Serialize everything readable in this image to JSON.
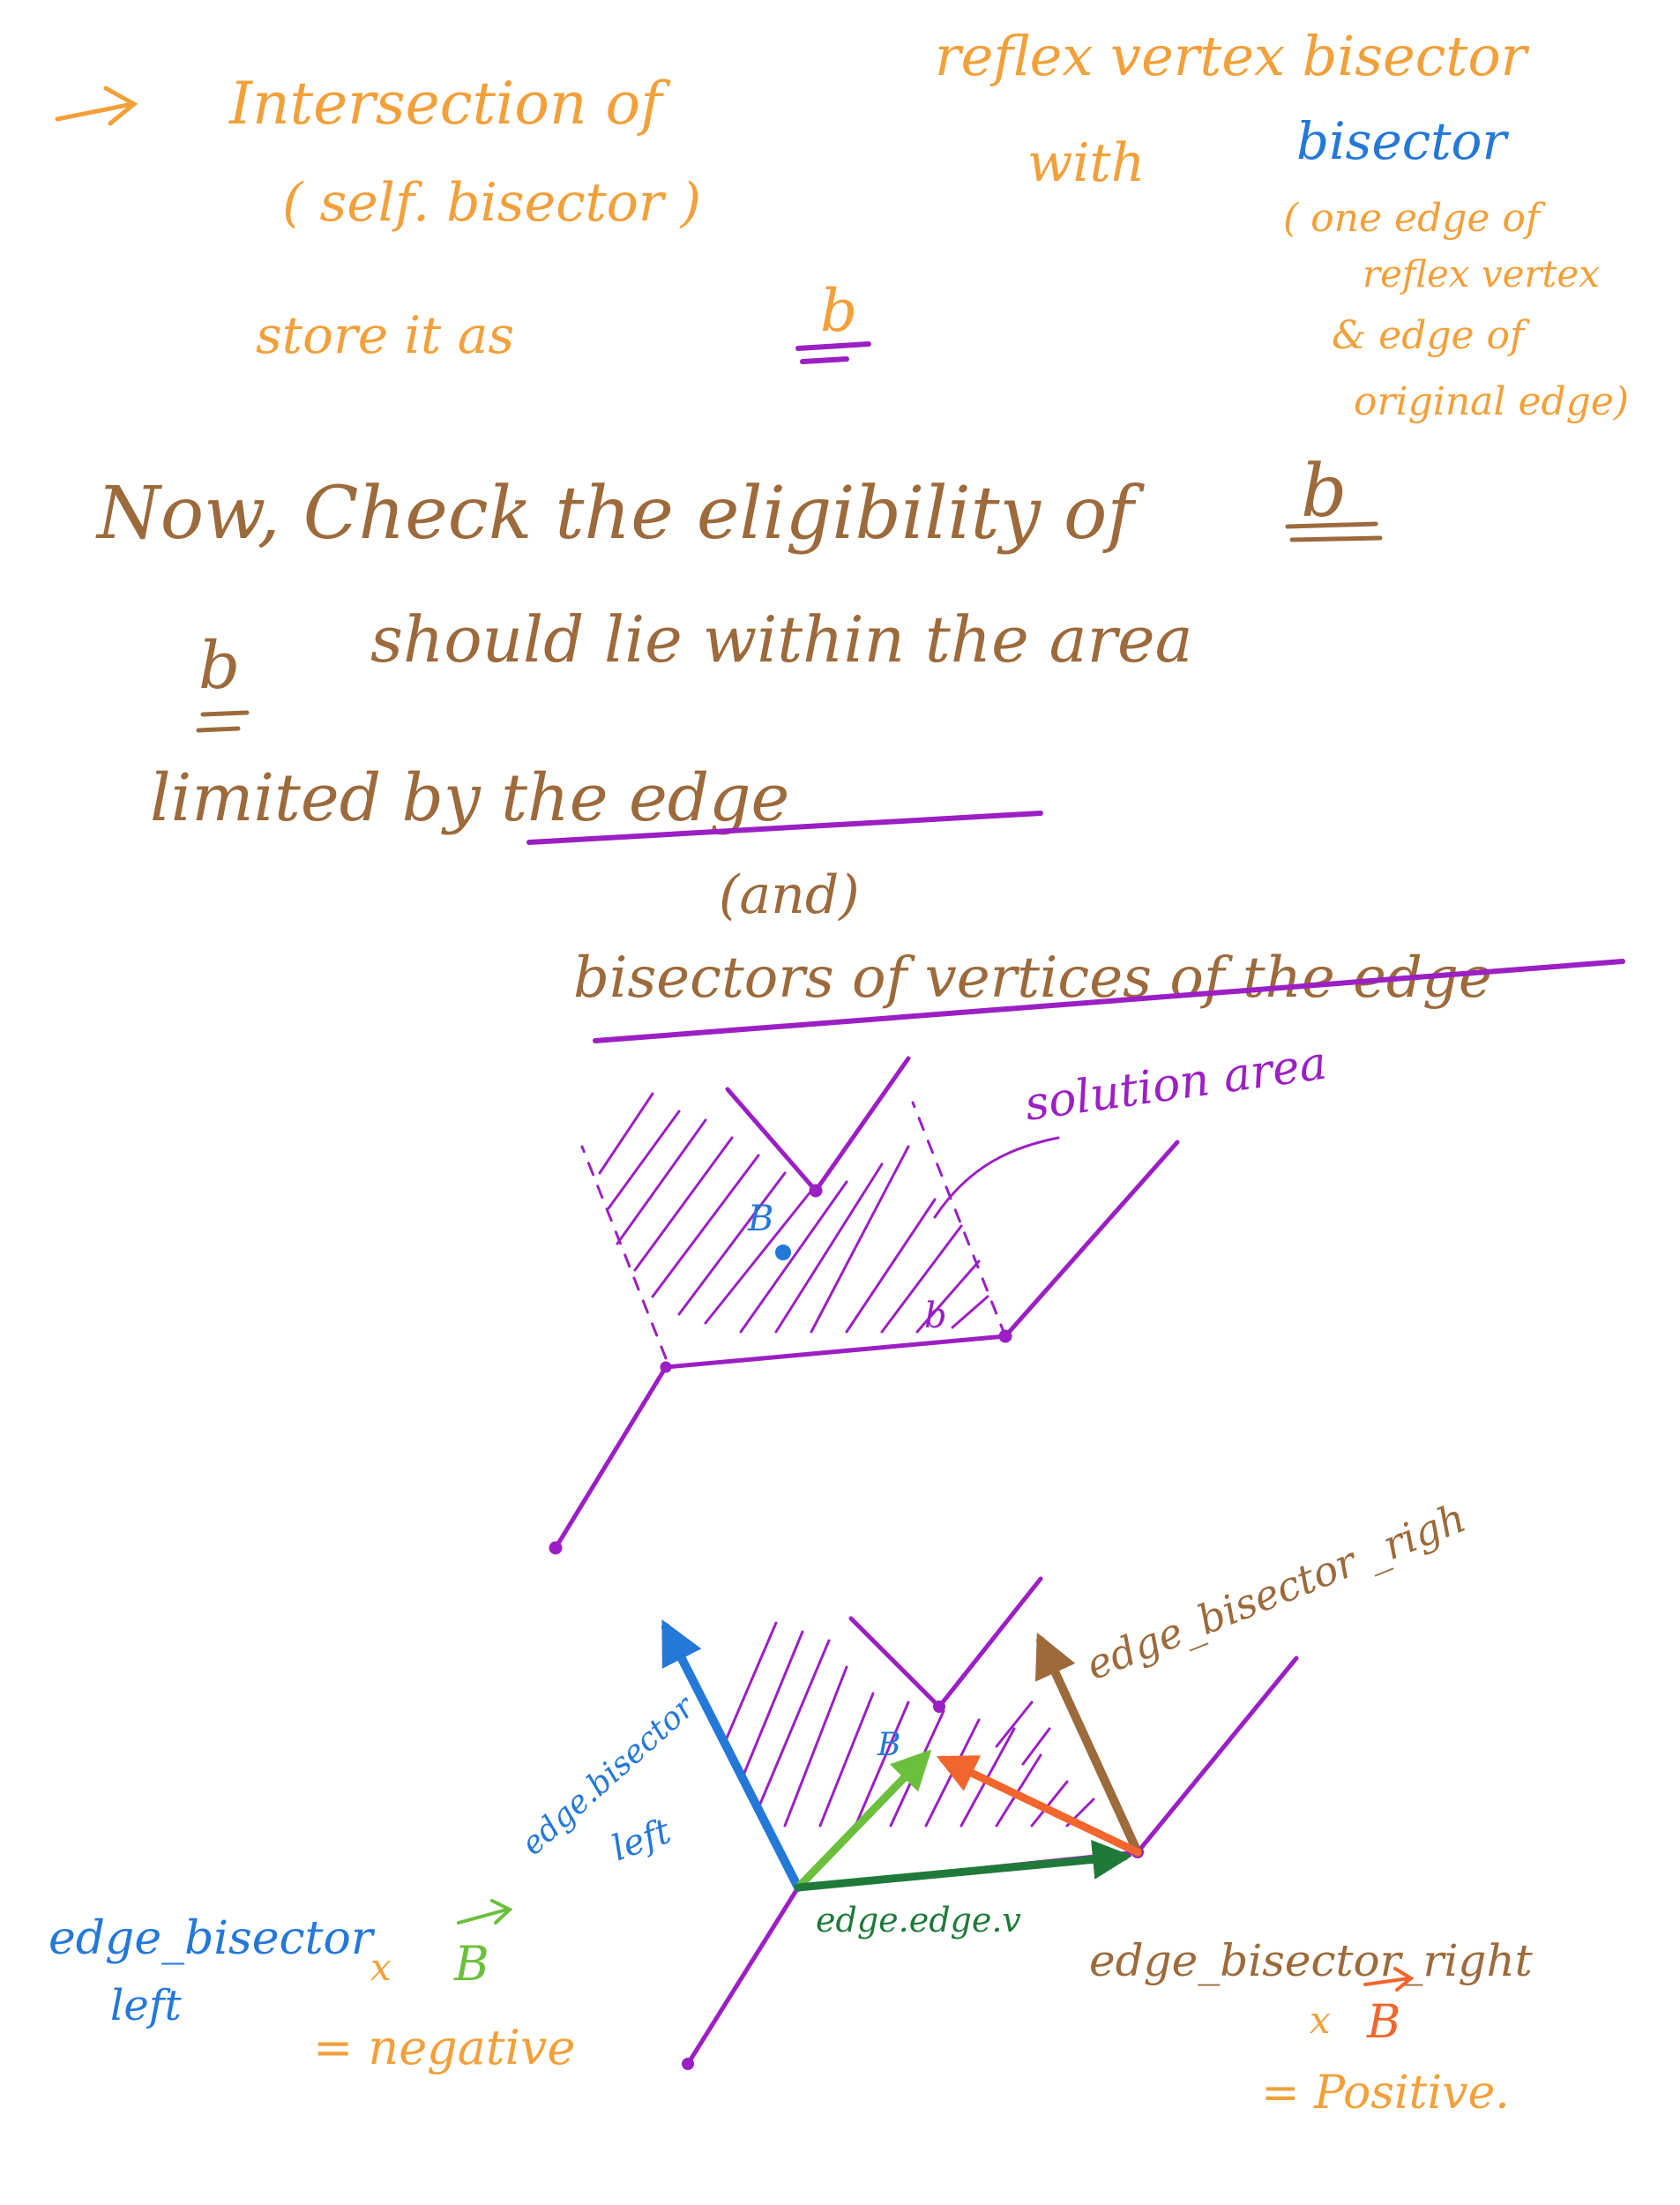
{
  "notes": {
    "line1_a": "Intersection of",
    "line1_b": "reflex vertex bisector",
    "line2_a": "( self. bisector )",
    "line2_b": "with",
    "bisector_word": "bisector",
    "paren_1": "( one edge of",
    "paren_2": "reflex vertex",
    "paren_3": "& edge of",
    "paren_4": "original edge)",
    "store": "store it as",
    "store_b": "b",
    "check": "Now, Check the eligibility of",
    "check_b": "b",
    "lie_b": "b",
    "lie": "should lie within the area",
    "limited": "limited by the edge",
    "and": "(and)",
    "bisectors": "bisectors of vertices of the edge"
  },
  "diagram1": {
    "solution_area_label": "solution area",
    "point_B_label": "B",
    "point_b_label": "b"
  },
  "diagram2": {
    "edge_bisector_right_label": "edge_bisector _righ",
    "edge_bisector_left_label_1": "edge.bisector",
    "edge_bisector_left_label_2": "left",
    "edge_vector_label": "edge.edge.v",
    "B_label": "B",
    "left_formula_1": "edge_bisector",
    "left_formula_2": "left",
    "left_times": "x",
    "left_B": "B",
    "left_result": "= negative",
    "right_formula": "edge_bisector_right",
    "right_times": "x",
    "right_B": "B",
    "right_result": "= Positive."
  },
  "colors": {
    "orange": "#F2A03A",
    "brown": "#9C6A3B",
    "blue": "#2478D8",
    "purple": "#9B1FC4",
    "green": "#6BBF3C",
    "dark_green": "#1F7A3A",
    "red_orange": "#F2652D"
  }
}
